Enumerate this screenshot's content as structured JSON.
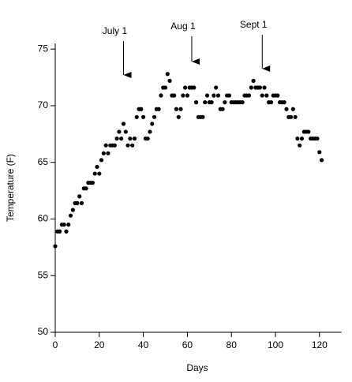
{
  "chart_data": {
    "type": "scatter",
    "xlabel": "Days",
    "ylabel": "Temperature (F)",
    "x": [
      0,
      1,
      2,
      3,
      4,
      5,
      6,
      7,
      8,
      9,
      10,
      11,
      12,
      13,
      14,
      15,
      16,
      17,
      18,
      19,
      20,
      21,
      22,
      23,
      24,
      25,
      26,
      27,
      28,
      29,
      30,
      31,
      32,
      33,
      34,
      35,
      36,
      37,
      38,
      39,
      40,
      41,
      42,
      43,
      44,
      45,
      46,
      47,
      48,
      49,
      50,
      51,
      52,
      53,
      54,
      55,
      56,
      57,
      58,
      59,
      60,
      61,
      62,
      63,
      64,
      65,
      66,
      67,
      68,
      69,
      70,
      71,
      72,
      73,
      74,
      75,
      76,
      77,
      78,
      79,
      80,
      81,
      82,
      83,
      84,
      85,
      86,
      87,
      88,
      89,
      90,
      91,
      92,
      93,
      94,
      95,
      96,
      97,
      98,
      99,
      100,
      101,
      102,
      103,
      104,
      105,
      106,
      107,
      108,
      109,
      110,
      111,
      112,
      113,
      114,
      115,
      116,
      117,
      118,
      119,
      120,
      121
    ],
    "values": [
      57.6,
      58.9,
      58.9,
      59.5,
      59.5,
      58.9,
      59.5,
      60.3,
      60.8,
      61.4,
      61.4,
      62.0,
      61.4,
      62.7,
      62.7,
      63.2,
      63.2,
      63.2,
      64.0,
      64.6,
      64.0,
      65.2,
      65.8,
      66.5,
      65.8,
      66.5,
      66.5,
      66.5,
      67.1,
      67.7,
      67.1,
      68.4,
      67.7,
      66.5,
      67.1,
      66.5,
      67.1,
      69.0,
      69.7,
      69.7,
      69.0,
      67.1,
      67.1,
      67.7,
      68.4,
      69.0,
      69.7,
      69.7,
      70.9,
      71.6,
      71.6,
      72.8,
      72.2,
      70.9,
      70.9,
      69.7,
      69.0,
      69.7,
      70.9,
      71.6,
      70.9,
      71.6,
      71.6,
      71.6,
      70.3,
      69.0,
      69.0,
      69.0,
      70.3,
      70.9,
      70.3,
      70.3,
      70.9,
      71.6,
      70.9,
      69.7,
      69.7,
      70.3,
      70.9,
      70.9,
      70.3,
      70.3,
      70.3,
      70.3,
      70.3,
      70.3,
      70.9,
      70.9,
      70.9,
      71.6,
      72.2,
      71.6,
      71.6,
      71.6,
      70.9,
      71.6,
      70.9,
      70.3,
      70.3,
      70.9,
      70.9,
      70.9,
      70.3,
      70.3,
      70.3,
      69.7,
      69.0,
      69.0,
      69.7,
      69.0,
      67.1,
      66.5,
      67.1,
      67.7,
      67.7,
      67.7,
      67.1,
      67.1,
      67.1,
      67.1,
      65.9,
      65.2
    ],
    "color": "#000000",
    "xlim": [
      0,
      130
    ],
    "xticks": [
      0,
      20,
      40,
      60,
      80,
      100,
      120
    ],
    "ylim": [
      50,
      75.5
    ],
    "yticks": [
      50,
      55,
      60,
      65,
      70,
      75
    ],
    "annotations": [
      {
        "text": "July 1",
        "x": 31
      },
      {
        "text": "Aug 1",
        "x": 62
      },
      {
        "text": "Sept 1",
        "x": 94
      }
    ]
  }
}
